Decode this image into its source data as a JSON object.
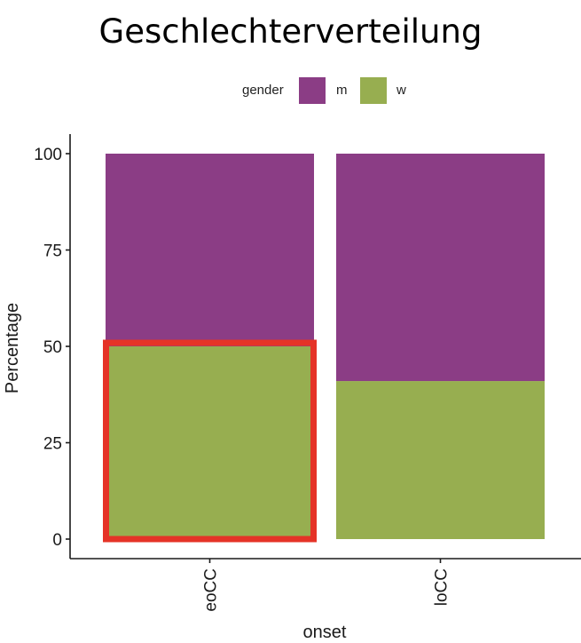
{
  "title": "Geschlechterverteilung",
  "legend": {
    "title": "gender",
    "items": [
      {
        "label": "m",
        "color": "#8B3D85"
      },
      {
        "label": "w",
        "color": "#97AE50"
      }
    ]
  },
  "highlight": {
    "target": "eoCC / w",
    "color": "#E53327"
  },
  "chart_data": {
    "type": "bar",
    "stacked": true,
    "title": "Geschlechterverteilung",
    "xlabel": "onset",
    "ylabel": "Percentage",
    "ylim": [
      0,
      100
    ],
    "yticks": [
      0,
      25,
      50,
      75,
      100
    ],
    "categories": [
      "eoCC",
      "loCC"
    ],
    "series": [
      {
        "name": "w",
        "color": "#97AE50",
        "values": [
          50,
          41
        ]
      },
      {
        "name": "m",
        "color": "#8B3D85",
        "values": [
          50,
          59
        ]
      }
    ],
    "legend_title": "gender",
    "legend_position": "top",
    "grid": false,
    "annotations": [
      "Red rectangle highlights the w segment of eoCC"
    ]
  }
}
